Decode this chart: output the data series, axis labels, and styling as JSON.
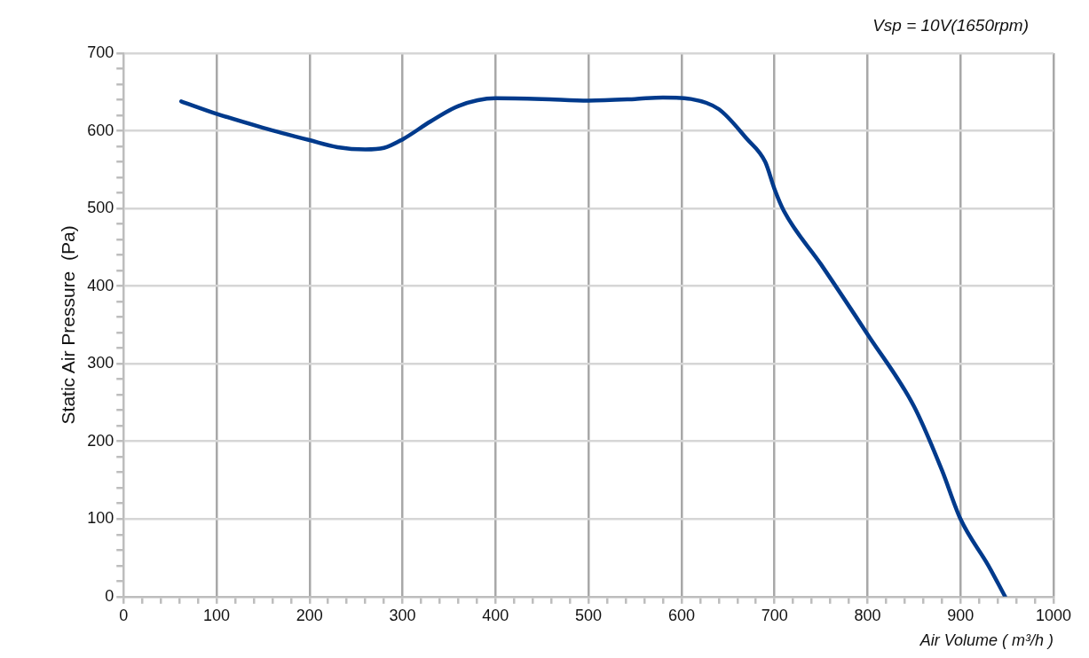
{
  "chart_data": {
    "type": "line",
    "xlabel": "Air Volume ( m³/h )",
    "ylabel": "Static Air Pressure  (Pa)",
    "annotations": [
      "Vsp = 10V(1650rpm)"
    ],
    "x": [
      62,
      100,
      150,
      200,
      230,
      260,
      280,
      300,
      330,
      360,
      400,
      450,
      500,
      550,
      580,
      610,
      640,
      670,
      690,
      700,
      710,
      750,
      800,
      850,
      880,
      900,
      930,
      948
    ],
    "series": [
      {
        "color": "#003a8c",
        "values": [
          638,
          622,
          604,
          588,
          579,
          576,
          578,
          589,
          612,
          632,
          642,
          641,
          639,
          641,
          643,
          641,
          628,
          590,
          560,
          525,
          497,
          428,
          338,
          245,
          163,
          100,
          40,
          0
        ]
      }
    ],
    "xlim": [
      0,
      1000
    ],
    "xticks": [
      0,
      {
        "value": 20,
        "label": null
      },
      {
        "value": 40,
        "label": null
      },
      {
        "value": 60,
        "label": null
      },
      {
        "value": 80,
        "label": null
      },
      100,
      {
        "value": 120,
        "label": null
      },
      {
        "value": 140,
        "label": null
      },
      {
        "value": 160,
        "label": null
      },
      {
        "value": 180,
        "label": null
      },
      200,
      {
        "value": 220,
        "label": null
      },
      {
        "value": 240,
        "label": null
      },
      {
        "value": 260,
        "label": null
      },
      {
        "value": 280,
        "label": null
      },
      300,
      {
        "value": 320,
        "label": null
      },
      {
        "value": 340,
        "label": null
      },
      {
        "value": 360,
        "label": null
      },
      {
        "value": 380,
        "label": null
      },
      400,
      {
        "value": 420,
        "label": null
      },
      {
        "value": 440,
        "label": null
      },
      {
        "value": 460,
        "label": null
      },
      {
        "value": 480,
        "label": null
      },
      500,
      {
        "value": 520,
        "label": null
      },
      {
        "value": 540,
        "label": null
      },
      {
        "value": 560,
        "label": null
      },
      {
        "value": 580,
        "label": null
      },
      600,
      {
        "value": 620,
        "label": null
      },
      {
        "value": 640,
        "label": null
      },
      {
        "value": 660,
        "label": null
      },
      {
        "value": 680,
        "label": null
      },
      700,
      {
        "value": 720,
        "label": null
      },
      {
        "value": 740,
        "label": null
      },
      {
        "value": 760,
        "label": null
      },
      {
        "value": 780,
        "label": null
      },
      800,
      {
        "value": 820,
        "label": null
      },
      {
        "value": 840,
        "label": null
      },
      {
        "value": 860,
        "label": null
      },
      {
        "value": 880,
        "label": null
      },
      900,
      {
        "value": 920,
        "label": null
      },
      {
        "value": 940,
        "label": null
      },
      {
        "value": 960,
        "label": null
      },
      {
        "value": 980,
        "label": null
      },
      1000
    ],
    "ylim": [
      0,
      700
    ],
    "yticks": [
      0,
      {
        "value": 20,
        "label": null
      },
      {
        "value": 40,
        "label": null
      },
      {
        "value": 60,
        "label": null
      },
      {
        "value": 80,
        "label": null
      },
      100,
      {
        "value": 120,
        "label": null
      },
      {
        "value": 140,
        "label": null
      },
      {
        "value": 160,
        "label": null
      },
      {
        "value": 180,
        "label": null
      },
      200,
      {
        "value": 220,
        "label": null
      },
      {
        "value": 240,
        "label": null
      },
      {
        "value": 260,
        "label": null
      },
      {
        "value": 280,
        "label": null
      },
      300,
      {
        "value": 320,
        "label": null
      },
      {
        "value": 340,
        "label": null
      },
      {
        "value": 360,
        "label": null
      },
      {
        "value": 380,
        "label": null
      },
      400,
      {
        "value": 420,
        "label": null
      },
      {
        "value": 440,
        "label": null
      },
      {
        "value": 460,
        "label": null
      },
      {
        "value": 480,
        "label": null
      },
      500,
      {
        "value": 520,
        "label": null
      },
      {
        "value": 540,
        "label": null
      },
      {
        "value": 560,
        "label": null
      },
      {
        "value": 580,
        "label": null
      },
      600,
      {
        "value": 620,
        "label": null
      },
      {
        "value": 640,
        "label": null
      },
      {
        "value": 660,
        "label": null
      },
      {
        "value": 680,
        "label": null
      },
      700
    ],
    "grid": true,
    "legend": false,
    "marker": "none",
    "line_style": "solid"
  }
}
